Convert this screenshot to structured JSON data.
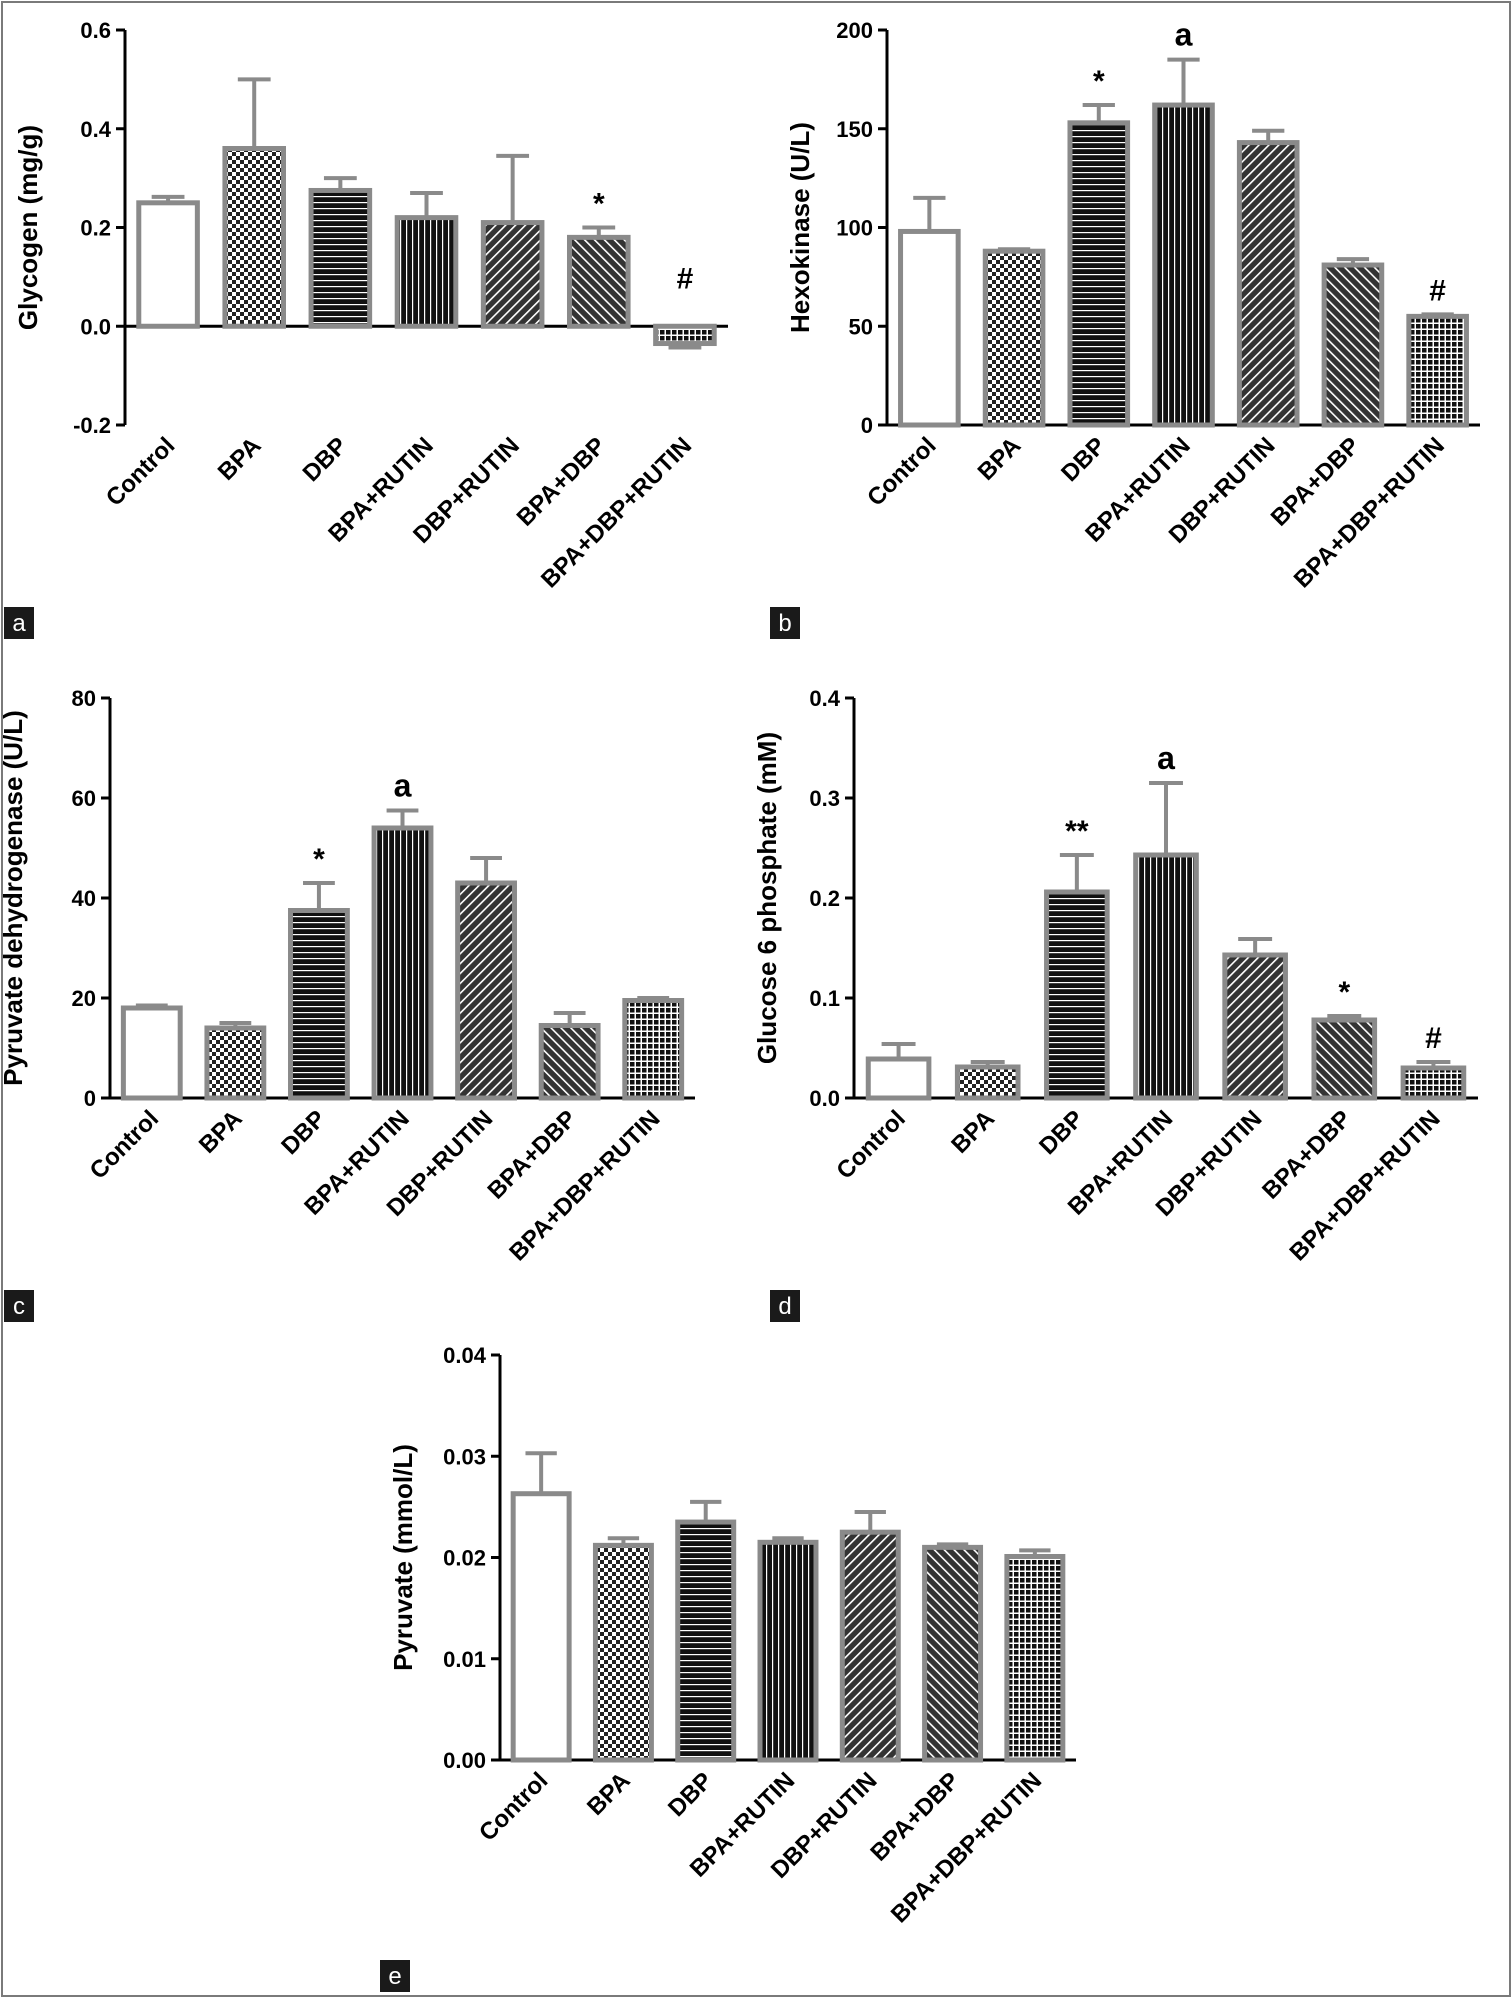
{
  "figure": {
    "border_color": "#7a7a7a",
    "bar_stroke": "#8a8a8a",
    "bar_fill": "#222222"
  },
  "chart_data": [
    {
      "panel": "a",
      "type": "bar",
      "ylabel": "Glycogen (mg/g)",
      "ylim": [
        -0.2,
        0.6
      ],
      "yticks": [
        "-0.2",
        "0.0",
        "0.2",
        "0.4",
        "0.6"
      ],
      "categories": [
        "Control",
        "BPA",
        "DBP",
        "BPA+RUTIN",
        "DBP+RUTIN",
        "BPA+DBP",
        "BPA+DBP+RUTIN"
      ],
      "values": [
        0.25,
        0.36,
        0.275,
        0.22,
        0.21,
        0.18,
        -0.035
      ],
      "errors": [
        0.012,
        0.14,
        0.025,
        0.05,
        0.135,
        0.02,
        0.008
      ],
      "annotations": [
        "",
        "",
        "",
        "",
        "",
        "*",
        "#"
      ],
      "patterns": [
        "none",
        "checker",
        "hlines",
        "vlines",
        "diag-right",
        "diag-left",
        "grid"
      ]
    },
    {
      "panel": "b",
      "type": "bar",
      "ylabel": "Hexokinase (U/L)",
      "ylim": [
        0,
        200
      ],
      "yticks": [
        "0",
        "50",
        "100",
        "150",
        "200"
      ],
      "categories": [
        "Control",
        "BPA",
        "DBP",
        "BPA+RUTIN",
        "DBP+RUTIN",
        "BPA+DBP",
        "BPA+DBP+RUTIN"
      ],
      "values": [
        98,
        88,
        153,
        162,
        143,
        81,
        55
      ],
      "errors": [
        17,
        1,
        9,
        23,
        6,
        3,
        1
      ],
      "annotations": [
        "",
        "",
        "*",
        "a",
        "",
        "",
        "#"
      ],
      "patterns": [
        "none",
        "checker",
        "hlines",
        "vlines",
        "diag-right",
        "diag-left",
        "grid"
      ]
    },
    {
      "panel": "c",
      "type": "bar",
      "ylabel": "Pyruvate dehydrogenase (U/L)",
      "ylim": [
        0,
        80
      ],
      "yticks": [
        "0",
        "20",
        "40",
        "60",
        "80"
      ],
      "categories": [
        "Control",
        "BPA",
        "DBP",
        "BPA+RUTIN",
        "DBP+RUTIN",
        "BPA+DBP",
        "BPA+DBP+RUTIN"
      ],
      "values": [
        18,
        14,
        37.5,
        54,
        43,
        14.5,
        19.5
      ],
      "errors": [
        0.5,
        1,
        5.5,
        3.5,
        5,
        2.5,
        0.5
      ],
      "annotations": [
        "",
        "",
        "*",
        "a",
        "",
        "",
        ""
      ],
      "patterns": [
        "none",
        "checker",
        "hlines",
        "vlines",
        "diag-right",
        "diag-left",
        "grid"
      ]
    },
    {
      "panel": "d",
      "type": "bar",
      "ylabel": "Glucose 6 phosphate (mM)",
      "ylim": [
        0,
        0.4
      ],
      "yticks": [
        "0.0",
        "0.1",
        "0.2",
        "0.3",
        "0.4"
      ],
      "categories": [
        "Control",
        "BPA",
        "DBP",
        "BPA+RUTIN",
        "DBP+RUTIN",
        "BPA+DBP",
        "BPA+DBP+RUTIN"
      ],
      "values": [
        0.039,
        0.031,
        0.206,
        0.243,
        0.143,
        0.078,
        0.03
      ],
      "errors": [
        0.015,
        0.005,
        0.037,
        0.072,
        0.016,
        0.004,
        0.006
      ],
      "annotations": [
        "",
        "",
        "**",
        "a",
        "",
        "*",
        "#"
      ],
      "patterns": [
        "none",
        "checker",
        "hlines",
        "vlines",
        "diag-right",
        "diag-left",
        "grid"
      ]
    },
    {
      "panel": "e",
      "type": "bar",
      "ylabel": "Pyruvate (mmol/L)",
      "ylim": [
        0,
        0.04
      ],
      "yticks": [
        "0.00",
        "0.01",
        "0.02",
        "0.03",
        "0.04"
      ],
      "categories": [
        "Control",
        "BPA",
        "DBP",
        "BPA+RUTIN",
        "DBP+RUTIN",
        "BPA+DBP",
        "BPA+DBP+RUTIN"
      ],
      "values": [
        0.0263,
        0.0212,
        0.0235,
        0.0215,
        0.0225,
        0.021,
        0.0201
      ],
      "errors": [
        0.004,
        0.0007,
        0.002,
        0.0004,
        0.002,
        0.0003,
        0.0006
      ],
      "annotations": [
        "",
        "",
        "",
        "",
        "",
        "",
        ""
      ],
      "patterns": [
        "none",
        "checker",
        "hlines",
        "vlines",
        "diag-right",
        "diag-left",
        "grid"
      ]
    }
  ]
}
